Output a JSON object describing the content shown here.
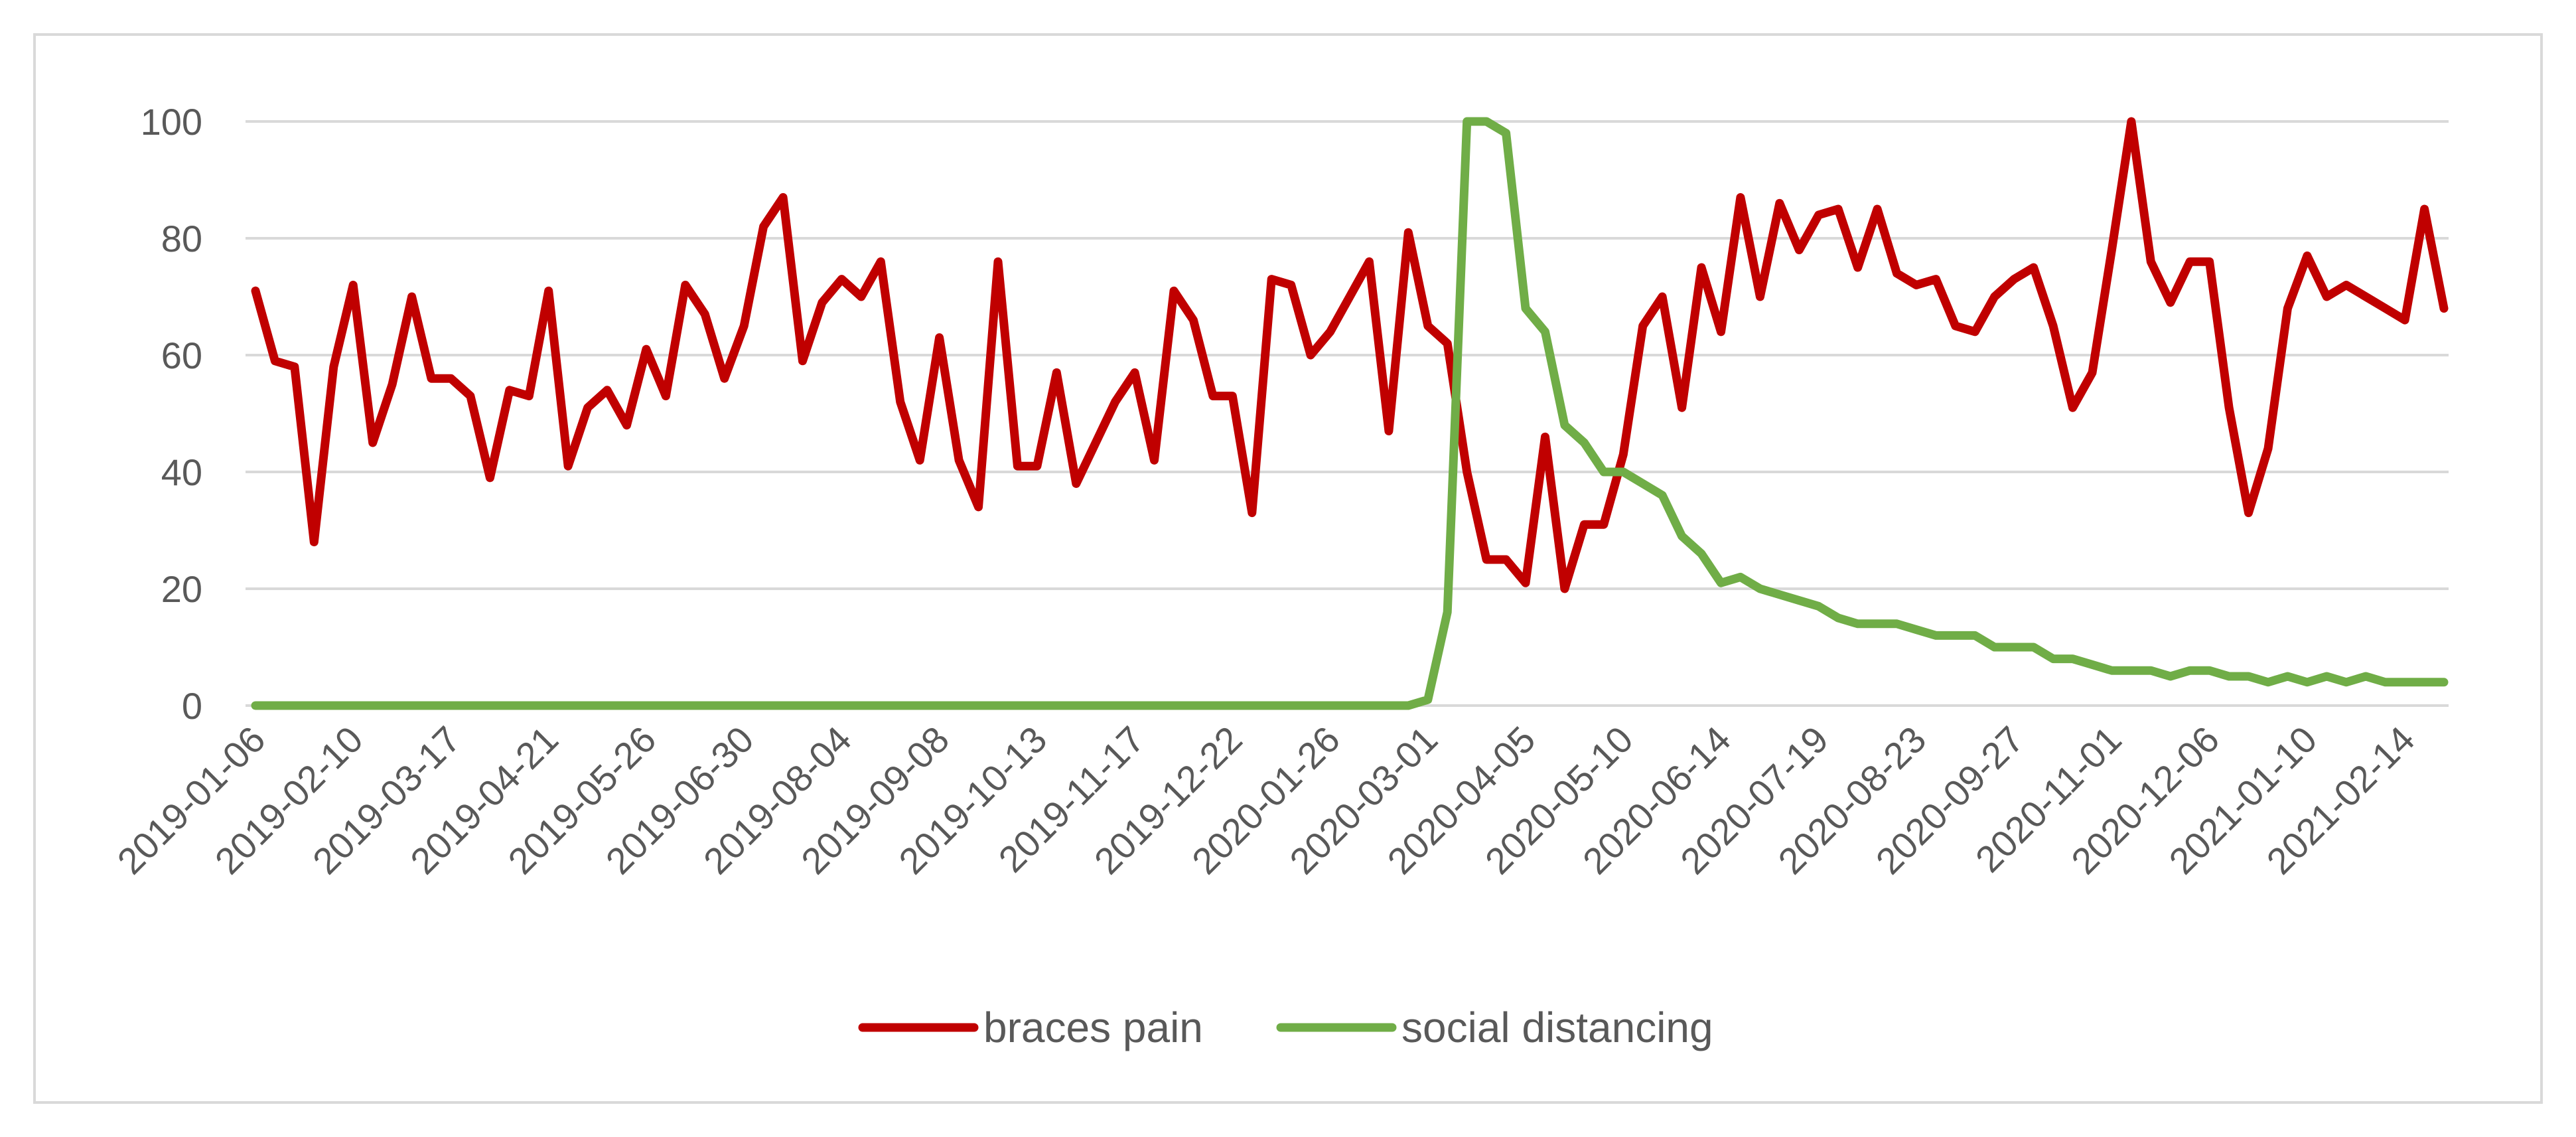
{
  "chart_data": {
    "type": "line",
    "title": "",
    "xlabel": "",
    "ylabel": "",
    "ylim": [
      0,
      100
    ],
    "yticks": [
      0,
      20,
      40,
      60,
      80,
      100
    ],
    "grid": true,
    "legend_position": "bottom-center",
    "x_start": "2019-01-06",
    "x_interval_days": 7,
    "xtick_labels": [
      "2019-01-06",
      "2019-02-10",
      "2019-03-17",
      "2019-04-21",
      "2019-05-26",
      "2019-06-30",
      "2019-08-04",
      "2019-09-08",
      "2019-10-13",
      "2019-11-17",
      "2019-12-22",
      "2020-01-26",
      "2020-03-01",
      "2020-04-05",
      "2020-05-10",
      "2020-06-14",
      "2020-07-19",
      "2020-08-23",
      "2020-09-27",
      "2020-11-01",
      "2020-12-06",
      "2021-01-10",
      "2021-02-14"
    ],
    "series": [
      {
        "name": "braces pain",
        "color": "#c00000",
        "values": [
          71,
          59,
          58,
          28,
          58,
          72,
          45,
          55,
          70,
          56,
          56,
          53,
          39,
          54,
          53,
          71,
          41,
          51,
          54,
          48,
          61,
          53,
          72,
          67,
          56,
          65,
          82,
          87,
          59,
          69,
          73,
          70,
          76,
          52,
          42,
          63,
          42,
          34,
          76,
          41,
          41,
          57,
          38,
          45,
          52,
          57,
          42,
          71,
          66,
          53,
          53,
          33,
          73,
          72,
          60,
          64,
          70,
          76,
          47,
          81,
          65,
          62,
          40,
          25,
          25,
          21,
          46,
          20,
          31,
          31,
          43,
          65,
          70,
          51,
          75,
          64,
          87,
          70,
          86,
          78,
          84,
          85,
          75,
          85,
          74,
          72,
          73,
          65,
          64,
          70,
          73,
          75,
          65,
          51,
          57,
          78,
          100,
          76,
          69,
          76,
          76,
          51,
          33,
          44,
          68,
          77,
          70,
          72,
          70,
          68,
          66,
          85,
          68
        ]
      },
      {
        "name": "social distancing",
        "color": "#70ad47",
        "values": [
          0,
          0,
          0,
          0,
          0,
          0,
          0,
          0,
          0,
          0,
          0,
          0,
          0,
          0,
          0,
          0,
          0,
          0,
          0,
          0,
          0,
          0,
          0,
          0,
          0,
          0,
          0,
          0,
          0,
          0,
          0,
          0,
          0,
          0,
          0,
          0,
          0,
          0,
          0,
          0,
          0,
          0,
          0,
          0,
          0,
          0,
          0,
          0,
          0,
          0,
          0,
          0,
          0,
          0,
          0,
          0,
          0,
          0,
          0,
          0,
          1,
          16,
          100,
          100,
          98,
          68,
          64,
          48,
          45,
          40,
          40,
          38,
          36,
          29,
          26,
          21,
          22,
          20,
          19,
          18,
          17,
          15,
          14,
          14,
          14,
          13,
          12,
          12,
          12,
          10,
          10,
          10,
          8,
          8,
          7,
          6,
          6,
          6,
          5,
          6,
          6,
          5,
          5,
          4,
          5,
          4,
          5,
          4,
          5,
          4,
          4,
          4,
          4
        ]
      }
    ]
  }
}
